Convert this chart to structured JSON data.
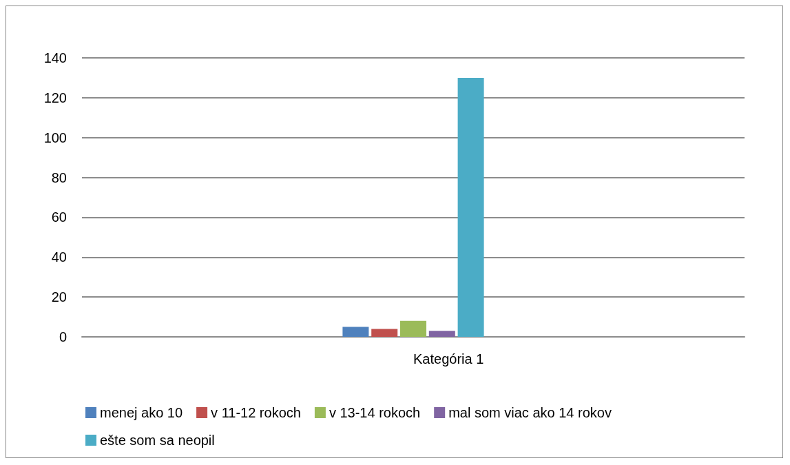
{
  "chart_data": {
    "type": "bar",
    "categories": [
      "Kategória 1"
    ],
    "series": [
      {
        "name": "menej ako 10",
        "color": "#4f81bd",
        "values": [
          5
        ]
      },
      {
        "name": "v 11-12 rokoch",
        "color": "#c0504d",
        "values": [
          4
        ]
      },
      {
        "name": "v 13-14 rokoch",
        "color": "#9bbb59",
        "values": [
          8
        ]
      },
      {
        "name": "mal som viac ako 14 rokov",
        "color": "#8064a2",
        "values": [
          3
        ]
      },
      {
        "name": "ešte som sa neopil",
        "color": "#4bacc6",
        "values": [
          130
        ]
      }
    ],
    "ylim": [
      0,
      140
    ],
    "yticks": [
      0,
      20,
      40,
      60,
      80,
      100,
      120,
      140
    ],
    "grid": "y",
    "legend": "bottom"
  }
}
